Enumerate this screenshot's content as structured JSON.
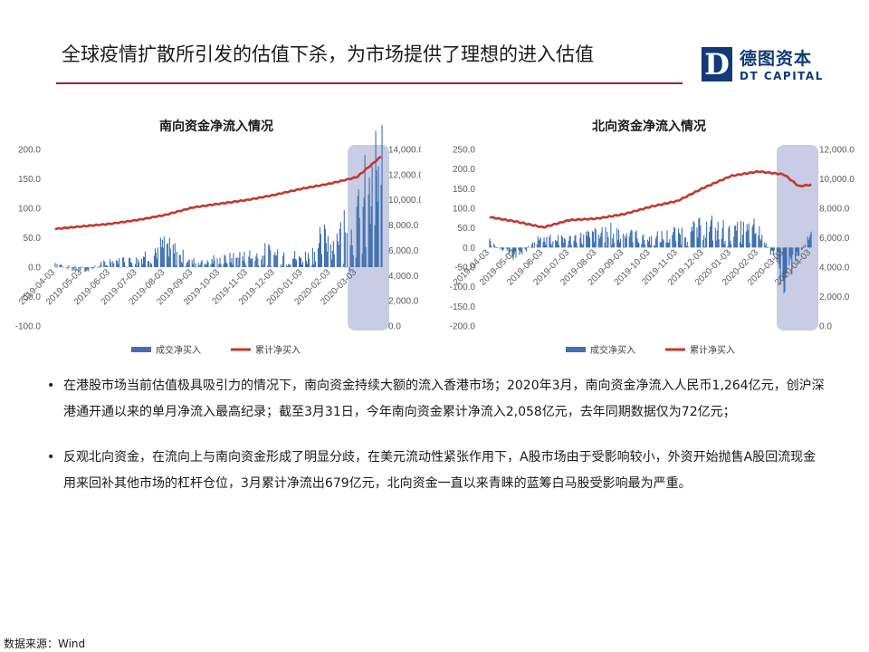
{
  "header": {
    "title": "全球疫情扩散所引发的估值下杀，为市场提供了理想的进入估值"
  },
  "logo": {
    "mark_letter": "D",
    "name_cn": "德图资本",
    "name_en": "DT CAPITAL"
  },
  "colors": {
    "accent_red": "#a0232b",
    "brand_blue": "#123a78",
    "bar_blue": "#3f6fb0",
    "line_red": "#c0392b",
    "highlight": "#c8cce4"
  },
  "chart_data": [
    {
      "id": "south",
      "type": "bar+line",
      "title": "南向资金净流入情况",
      "categories": [
        "2019-04-03",
        "2019-05-03",
        "2019-06-03",
        "2019-07-03",
        "2019-08-03",
        "2019-09-03",
        "2019-10-03",
        "2019-11-03",
        "2019-12-03",
        "2020-01-03",
        "2020-02-03",
        "2020-03-03"
      ],
      "y_left": {
        "min": -100,
        "max": 200,
        "step": 50,
        "ticks": [
          "-100.0",
          "-50.0",
          "0.0",
          "50.0",
          "100.0",
          "150.0",
          "200.0"
        ]
      },
      "y_right": {
        "min": 0,
        "max": 14000,
        "step": 2000,
        "ticks": [
          "0.0",
          "2,000.0",
          "4,000.0",
          "6,000.0",
          "8,000.0",
          "10,000.0",
          "12,000.0",
          "14,000.0"
        ]
      },
      "highlight_range": [
        "2020-02-28",
        "2020-03-31"
      ],
      "legend": "bottom",
      "series": [
        {
          "name": "成交净买入",
          "kind": "bar",
          "axis": "left",
          "monthly_points": [
            {
              "date": "2019-04-03",
              "value": 8
            },
            {
              "date": "2019-05-03",
              "value": -8
            },
            {
              "date": "2019-06-03",
              "value": 10
            },
            {
              "date": "2019-07-03",
              "value": 15
            },
            {
              "date": "2019-08-03",
              "value": 35
            },
            {
              "date": "2019-09-03",
              "value": 10
            },
            {
              "date": "2019-10-03",
              "value": 12
            },
            {
              "date": "2019-11-03",
              "value": 20
            },
            {
              "date": "2019-12-03",
              "value": 25
            },
            {
              "date": "2020-01-03",
              "value": 15
            },
            {
              "date": "2020-02-03",
              "value": 55
            },
            {
              "date": "2020-03-03",
              "value": 80
            },
            {
              "date": "2020-03-31",
              "value": 165
            }
          ]
        },
        {
          "name": "累计净买入",
          "kind": "line",
          "axis": "right",
          "points": [
            {
              "date": "2019-04-03",
              "value": 7700
            },
            {
              "date": "2019-05-03",
              "value": 7900
            },
            {
              "date": "2019-06-03",
              "value": 8100
            },
            {
              "date": "2019-07-03",
              "value": 8400
            },
            {
              "date": "2019-08-03",
              "value": 8800
            },
            {
              "date": "2019-09-03",
              "value": 9400
            },
            {
              "date": "2019-10-03",
              "value": 9700
            },
            {
              "date": "2019-11-03",
              "value": 10000
            },
            {
              "date": "2019-12-03",
              "value": 10400
            },
            {
              "date": "2020-01-03",
              "value": 10900
            },
            {
              "date": "2020-02-03",
              "value": 11300
            },
            {
              "date": "2020-03-03",
              "value": 11800
            },
            {
              "date": "2020-03-31",
              "value": 13500
            }
          ]
        }
      ]
    },
    {
      "id": "north",
      "type": "bar+line",
      "title": "北向资金净流入情况",
      "categories": [
        "2019-04-03",
        "2019-05-03",
        "2019-06-03",
        "2019-07-03",
        "2019-08-03",
        "2019-09-03",
        "2019-10-03",
        "2019-11-03",
        "2019-12-03",
        "2020-01-03",
        "2020-02-03",
        "2020-03-03",
        "2020-04-03"
      ],
      "y_left": {
        "min": -200,
        "max": 250,
        "step": 50,
        "ticks": [
          "-200.0",
          "-150.0",
          "-100.0",
          "-50.0",
          "0.0",
          "50.0",
          "100.0",
          "150.0",
          "200.0",
          "250.0"
        ]
      },
      "y_right": {
        "min": 0,
        "max": 12000,
        "step": 2000,
        "ticks": [
          "0.0",
          "2,000.0",
          "4,000.0",
          "6,000.0",
          "8,000.0",
          "10,000.0",
          "12,000.0"
        ]
      },
      "highlight_range": [
        "2020-03-01",
        "2020-04-03"
      ],
      "legend": "bottom",
      "series": [
        {
          "name": "成交净买入",
          "kind": "bar",
          "axis": "left",
          "monthly_points": [
            {
              "date": "2019-04-03",
              "value": 15
            },
            {
              "date": "2019-05-03",
              "value": -25
            },
            {
              "date": "2019-06-03",
              "value": 30
            },
            {
              "date": "2019-07-03",
              "value": 20
            },
            {
              "date": "2019-08-03",
              "value": 35
            },
            {
              "date": "2019-09-03",
              "value": 40
            },
            {
              "date": "2019-10-03",
              "value": 20
            },
            {
              "date": "2019-11-03",
              "value": 35
            },
            {
              "date": "2019-12-03",
              "value": 50
            },
            {
              "date": "2020-01-03",
              "value": 40
            },
            {
              "date": "2020-02-03",
              "value": 45
            },
            {
              "date": "2020-03-03",
              "value": -70
            },
            {
              "date": "2020-04-03",
              "value": 30
            }
          ]
        },
        {
          "name": "累计净买入",
          "kind": "line",
          "axis": "right",
          "points": [
            {
              "date": "2019-04-03",
              "value": 7400
            },
            {
              "date": "2019-05-03",
              "value": 7100
            },
            {
              "date": "2019-06-03",
              "value": 6700
            },
            {
              "date": "2019-07-03",
              "value": 7200
            },
            {
              "date": "2019-08-03",
              "value": 7300
            },
            {
              "date": "2019-09-03",
              "value": 7600
            },
            {
              "date": "2019-10-03",
              "value": 8100
            },
            {
              "date": "2019-11-03",
              "value": 8500
            },
            {
              "date": "2019-12-03",
              "value": 9400
            },
            {
              "date": "2020-01-03",
              "value": 10200
            },
            {
              "date": "2020-02-03",
              "value": 10500
            },
            {
              "date": "2020-03-03",
              "value": 10300
            },
            {
              "date": "2020-03-20",
              "value": 9500
            },
            {
              "date": "2020-04-03",
              "value": 9600
            }
          ]
        }
      ]
    }
  ],
  "bullets": [
    "在港股市场当前估值极具吸引力的情况下，南向资金持续大额的流入香港市场；2020年3月，南向资金净流入人民币1,264亿元，创沪深港通开通以来的单月净流入最高纪录；截至3月31日，今年南向资金累计净流入2,058亿元，去年同期数据仅为72亿元；",
    "反观北向资金，在流向上与南向资金形成了明显分歧，在美元流动性紧张作用下，A股市场由于受影响较小，外资开始抛售A股回流现金用来回补其他市场的杠杆仓位，3月累计净流出679亿元，北向资金一直以来青睐的蓝筹白马股受影响最为严重。"
  ],
  "footer": {
    "source": "数据来源：Wind"
  }
}
